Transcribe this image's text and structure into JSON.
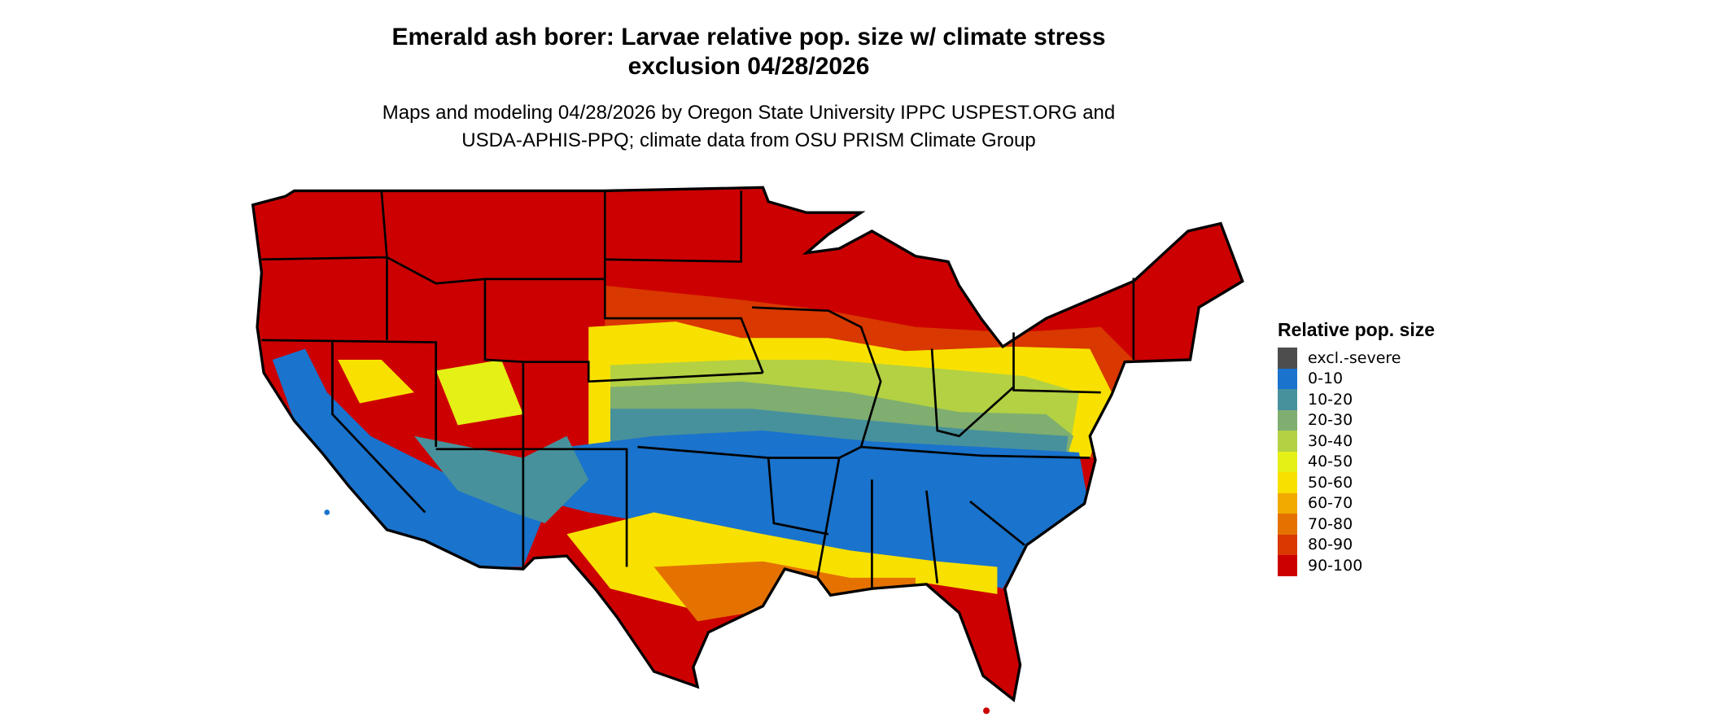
{
  "title": {
    "line1": "Emerald ash borer: Larvae relative pop. size w/ climate stress",
    "line2": "exclusion 04/28/2026"
  },
  "subtitle": {
    "line1": "Maps and modeling 04/28/2026 by Oregon State University IPPC USPEST.ORG and",
    "line2": "USDA-APHIS-PPQ; climate data from OSU PRISM Climate Group"
  },
  "map": {
    "region": "Contiguous United States",
    "border_color": "#000000"
  },
  "legend": {
    "title": "Relative pop. size",
    "items": [
      {
        "label": "excl.-severe",
        "color": "#4d4d4d"
      },
      {
        "label": "0-10",
        "color": "#1a73cc"
      },
      {
        "label": "10-20",
        "color": "#47919c"
      },
      {
        "label": "20-30",
        "color": "#7fae70"
      },
      {
        "label": "30-40",
        "color": "#b3d143"
      },
      {
        "label": "40-50",
        "color": "#e5f016"
      },
      {
        "label": "50-60",
        "color": "#f8e100"
      },
      {
        "label": "60-70",
        "color": "#f0aa00"
      },
      {
        "label": "70-80",
        "color": "#e57200"
      },
      {
        "label": "80-90",
        "color": "#d93800"
      },
      {
        "label": "90-100",
        "color": "#cc0000"
      }
    ]
  }
}
